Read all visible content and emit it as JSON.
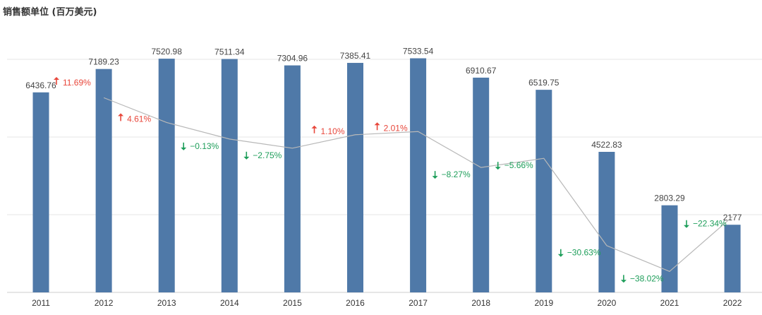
{
  "chart_data": {
    "type": "bar",
    "title": "销售额单位 (百万美元)",
    "categories": [
      "2011",
      "2012",
      "2013",
      "2014",
      "2015",
      "2016",
      "2017",
      "2018",
      "2019",
      "2020",
      "2021",
      "2022"
    ],
    "series": [
      {
        "values": [
          6436.76,
          7189.23,
          7520.98,
          7511.34,
          7304.96,
          7385.41,
          7533.54,
          6910.67,
          6519.75,
          4522.83,
          2803.29,
          2177
        ]
      }
    ],
    "value_labels": [
      "6436.76",
      "7189.23",
      "7520.98",
      "7511.34",
      "7304.96",
      "7385.41",
      "7533.54",
      "6910.67",
      "6519.75",
      "4522.83",
      "2803.29",
      "2177"
    ],
    "growth_series": {
      "type": "line",
      "values": [
        11.69,
        4.61,
        -0.13,
        -2.75,
        1.1,
        2.01,
        -8.27,
        -5.66,
        -30.63,
        -38.02,
        -22.34
      ],
      "labels": [
        "11.69%",
        "4.61%",
        "−0.13%",
        "−2.75%",
        "1.10%",
        "2.01%",
        "−8.27%",
        "−5.66%",
        "−30.63%",
        "−38.02%",
        "−22.34%"
      ],
      "x": [
        "2012",
        "2013",
        "2014",
        "2015",
        "2016",
        "2017",
        "2018",
        "2019",
        "2020",
        "2021",
        "2022"
      ]
    },
    "ylim": [
      0,
      9000
    ],
    "grid": true,
    "colors": {
      "bar": "#4f79a8",
      "line": "#b8b8b8",
      "up": "#e8473b",
      "down": "#1e9e5a",
      "grid": "#e6e6e6"
    }
  }
}
